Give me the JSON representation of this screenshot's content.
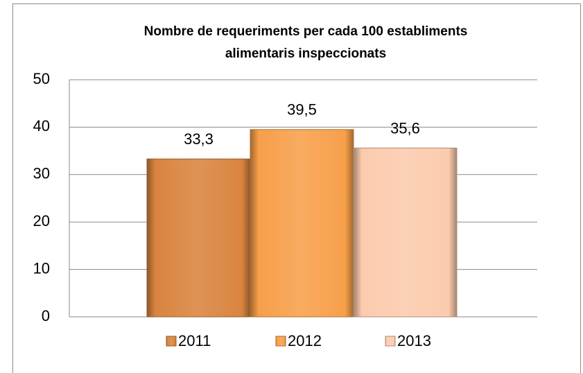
{
  "chart_data": {
    "type": "bar",
    "title": "Nombre de requeriments per cada 100 establiments alimentaris inspeccionats",
    "categories": [
      null
    ],
    "series": [
      {
        "name": "2011",
        "color": "#d9843f",
        "values": [
          33.3
        ],
        "value_labels": [
          "33,3"
        ]
      },
      {
        "name": "2012",
        "color": "#f79f4a",
        "values": [
          39.5
        ],
        "value_labels": [
          "39,5"
        ]
      },
      {
        "name": "2013",
        "color": "#fccbad",
        "values": [
          35.6
        ],
        "value_labels": [
          "35,6"
        ]
      }
    ],
    "ylim": [
      0,
      50
    ],
    "yticks": [
      0,
      10,
      20,
      30,
      40,
      50
    ],
    "grid": true,
    "legend": "bottom"
  }
}
